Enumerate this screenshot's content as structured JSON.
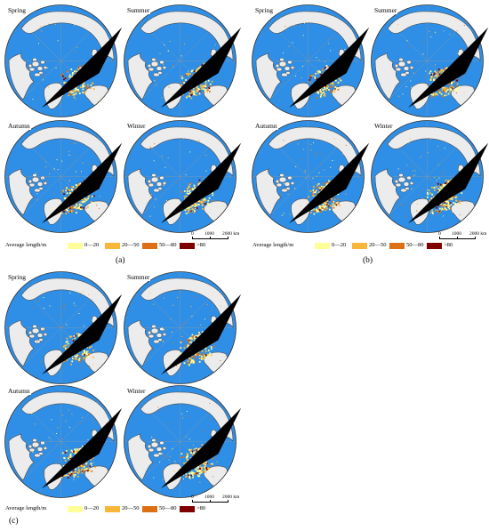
{
  "seasons": [
    "Spring",
    "Summer",
    "Autumn",
    "Winter"
  ],
  "panels": [
    {
      "caption": "(a)",
      "intensity": [
        0.45,
        0.65,
        0.75,
        0.55
      ]
    },
    {
      "caption": "(b)",
      "intensity": [
        0.7,
        0.8,
        1.0,
        0.9
      ]
    },
    {
      "caption": "(c)",
      "intensity": [
        0.5,
        0.65,
        0.85,
        0.75
      ]
    }
  ],
  "legend": {
    "title": "Average length/m",
    "classes": [
      {
        "label": "0—20",
        "color": "#ffff99"
      },
      {
        "label": "20—50",
        "color": "#f9b73a"
      },
      {
        "label": "50—80",
        "color": "#dd7014"
      },
      {
        "label": ">80",
        "color": "#7f0000"
      }
    ]
  },
  "scale": {
    "ticks": [
      "0",
      "1000",
      "2000 km"
    ]
  },
  "colors": {
    "ocean": "#2f8fe6",
    "land": "#ececec",
    "coast": "#4a4a4a",
    "graticule": "#9a9a9a"
  }
}
